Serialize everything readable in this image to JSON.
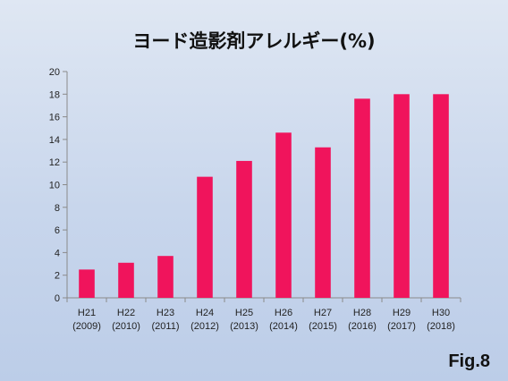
{
  "page": {
    "title": "ヨード造影剤アレルギー(%)",
    "figure_label": "Fig.8"
  },
  "colors": {
    "bar": "#f0145c",
    "axis": "#8a8a8a",
    "background_top": "#dfe7f3",
    "background_bottom": "#bccde8"
  },
  "chart_data": {
    "type": "bar",
    "title": "ヨード造影剤アレルギー(%)",
    "xlabel": "",
    "ylabel": "",
    "categories": [
      [
        "H21",
        "(2009)"
      ],
      [
        "H22",
        "(2010)"
      ],
      [
        "H23",
        "(2011)"
      ],
      [
        "H24",
        "(2012)"
      ],
      [
        "H25",
        "(2013)"
      ],
      [
        "H26",
        "(2014)"
      ],
      [
        "H27",
        "(2015)"
      ],
      [
        "H28",
        "(2016)"
      ],
      [
        "H29",
        "(2017)"
      ],
      [
        "H30",
        "(2018)"
      ]
    ],
    "values": [
      2.5,
      3.1,
      3.7,
      10.7,
      12.1,
      14.6,
      13.3,
      17.6,
      18.0,
      18.0
    ],
    "ylim": [
      0,
      20
    ],
    "yticks": [
      0,
      2,
      4,
      6,
      8,
      10,
      12,
      14,
      16,
      18,
      20
    ],
    "grid": false,
    "legend": "none"
  }
}
